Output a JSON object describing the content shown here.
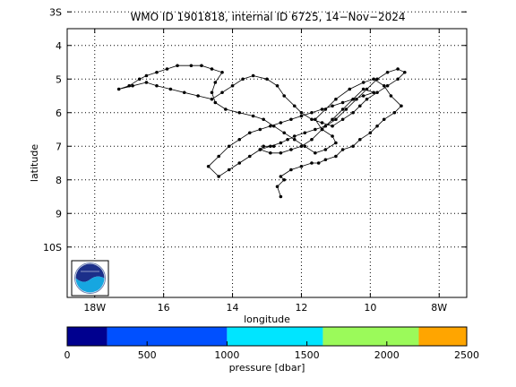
{
  "chart_data": {
    "type": "scatter",
    "title": "WMO ID 1901818, internal ID 6725, 14−Nov−2024",
    "xlabel": "longitude",
    "ylabel": "latitude",
    "xlim": [
      -18.8,
      -7.2
    ],
    "ylim": [
      -3.5,
      -11.5
    ],
    "grid": true,
    "x_ticks": [
      {
        "value": -18,
        "label": "18W"
      },
      {
        "value": -16,
        "label": "16"
      },
      {
        "value": -14,
        "label": "14"
      },
      {
        "value": -12,
        "label": "12"
      },
      {
        "value": -10,
        "label": "10"
      },
      {
        "value": -8,
        "label": "8W"
      }
    ],
    "y_ticks": [
      {
        "value": -3,
        "label": "3S"
      },
      {
        "value": -4,
        "label": "4"
      },
      {
        "value": -5,
        "label": "5"
      },
      {
        "value": -6,
        "label": "6"
      },
      {
        "value": -7,
        "label": "7"
      },
      {
        "value": -8,
        "label": "8"
      },
      {
        "value": -9,
        "label": "9"
      },
      {
        "value": -10,
        "label": "10S"
      }
    ],
    "series": [
      {
        "x": [
          -12.6,
          -12.7,
          -12.5,
          -12.6,
          -12.3,
          -12.0,
          -11.7,
          -11.5,
          -11.3,
          -11.0,
          -10.8,
          -10.5,
          -10.3,
          -10.0,
          -9.8,
          -9.6,
          -9.3,
          -9.1,
          -9.4,
          -9.6,
          -9.9,
          -10.2,
          -10.6,
          -11.0,
          -11.3,
          -11.6,
          -11.4,
          -11.1,
          -11.0,
          -11.3,
          -11.6,
          -11.9,
          -12.2,
          -12.5,
          -12.8,
          -13.1,
          -13.4,
          -13.8,
          -14.2,
          -14.5,
          -14.6,
          -14.5,
          -14.3,
          -14.6,
          -14.9,
          -15.2,
          -15.6,
          -15.9,
          -16.2,
          -16.5,
          -16.7,
          -17.0,
          -17.3,
          -16.9,
          -16.5,
          -16.2,
          -15.8,
          -15.4,
          -15.0,
          -14.6,
          -14.3,
          -14.0,
          -13.7,
          -13.4,
          -13.0,
          -12.7,
          -12.5,
          -12.2,
          -12.0,
          -11.7,
          -11.4,
          -11.1,
          -10.8,
          -10.5,
          -10.3,
          -10.1,
          -9.8,
          -9.5,
          -9.2,
          -9.0,
          -9.2,
          -9.5,
          -9.8,
          -10.1,
          -10.4,
          -10.7,
          -11.0,
          -11.3,
          -11.6,
          -11.9,
          -12.2,
          -12.4,
          -12.6,
          -12.9,
          -13.2,
          -13.5,
          -13.8,
          -14.1,
          -14.4,
          -14.7,
          -14.4,
          -14.1,
          -13.8,
          -13.5,
          -13.2,
          -12.9,
          -12.6,
          -12.3,
          -12.0,
          -11.7,
          -11.4,
          -11.1,
          -10.8,
          -10.5,
          -10.2,
          -9.9,
          -10.2,
          -10.5,
          -10.8,
          -11.1,
          -11.4,
          -11.7,
          -12.0,
          -12.3,
          -12.6,
          -12.9,
          -13.2,
          -13.1,
          -12.8
        ],
        "y": [
          -8.5,
          -8.2,
          -8.0,
          -7.9,
          -7.7,
          -7.6,
          -7.5,
          -7.5,
          -7.4,
          -7.3,
          -7.1,
          -7.0,
          -6.8,
          -6.6,
          -6.4,
          -6.2,
          -6.0,
          -5.8,
          -5.5,
          -5.2,
          -5.0,
          -5.1,
          -5.3,
          -5.6,
          -5.9,
          -6.2,
          -6.5,
          -6.7,
          -6.9,
          -7.1,
          -7.2,
          -7.0,
          -6.8,
          -6.6,
          -6.4,
          -6.2,
          -6.1,
          -6.0,
          -5.9,
          -5.7,
          -5.4,
          -5.1,
          -4.8,
          -4.7,
          -4.6,
          -4.6,
          -4.6,
          -4.7,
          -4.8,
          -4.9,
          -5.0,
          -5.2,
          -5.3,
          -5.2,
          -5.1,
          -5.2,
          -5.3,
          -5.4,
          -5.5,
          -5.6,
          -5.4,
          -5.2,
          -5.0,
          -4.9,
          -5.0,
          -5.2,
          -5.5,
          -5.8,
          -6.0,
          -6.2,
          -6.3,
          -6.4,
          -6.2,
          -6.0,
          -5.8,
          -5.6,
          -5.4,
          -5.2,
          -5.0,
          -4.8,
          -4.7,
          -4.8,
          -5.0,
          -5.3,
          -5.6,
          -5.9,
          -6.2,
          -6.4,
          -6.5,
          -6.6,
          -6.7,
          -6.8,
          -6.9,
          -7.0,
          -7.1,
          -7.3,
          -7.5,
          -7.7,
          -7.9,
          -7.6,
          -7.3,
          -7.0,
          -6.8,
          -6.6,
          -6.5,
          -6.4,
          -6.3,
          -6.2,
          -6.1,
          -6.0,
          -5.9,
          -5.8,
          -5.7,
          -5.6,
          -5.5,
          -5.4,
          -5.3,
          -5.6,
          -5.9,
          -6.2,
          -6.5,
          -6.8,
          -7.0,
          -7.1,
          -7.2,
          -7.2,
          -7.1,
          -7.0,
          -7.0
        ]
      }
    ],
    "colorbar": {
      "label": "pressure [dbar]",
      "tick_labels": [
        "0",
        "500",
        "1000",
        "1500",
        "2000",
        "2500"
      ],
      "bins": [
        {
          "from": 0,
          "to": 250,
          "color": "#00008f"
        },
        {
          "from": 250,
          "to": 1000,
          "color": "#0050ff"
        },
        {
          "from": 1000,
          "to": 1600,
          "color": "#00e5ff"
        },
        {
          "from": 1600,
          "to": 2200,
          "color": "#9bfa5a"
        },
        {
          "from": 2200,
          "to": 2500,
          "color": "#ffa500"
        }
      ]
    },
    "logo_text": "NOAA"
  }
}
